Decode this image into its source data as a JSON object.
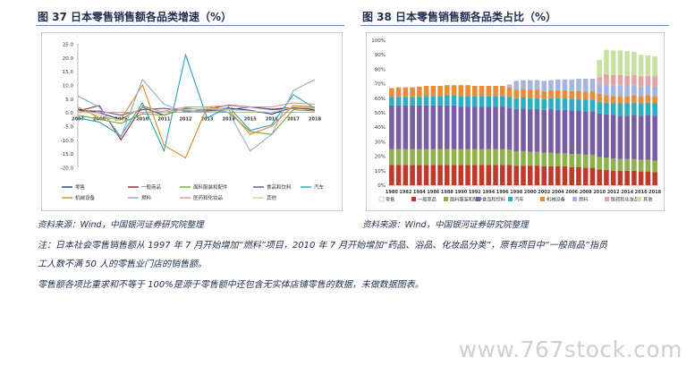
{
  "left_title": "图 37 日本零售销售额各品类增速（%）",
  "right_title": "图 38 日本零售销售额各品类占比（%）",
  "left_source": "资料来源：Wind，中国银河证券研究院整理",
  "right_source": "资料来源：Wind，中国银河证券研究院整理",
  "note1": "注：日本社会零售销售额从 1997 年 7 月开始增加“燃料”项目，2010 年 7 月开始增加“药品、浴品、化妆品分类”，原有项目中“一般商品”指员",
  "note2": "工人数不满 50 人的零售业门店的销售额。",
  "note3": "零售额各项比重求和不等于 100%是源于零售额中还包含无实体店铺零售的数据，未做数据图表。",
  "watermark": "www.767stock.com",
  "chart_data": [
    {
      "type": "line",
      "x": [
        "2007",
        "2008",
        "2009",
        "2010",
        "2011",
        "2012",
        "2013",
        "2014",
        "2015",
        "2016",
        "2017",
        "2018"
      ],
      "ylim": [
        -20,
        25
      ],
      "yticks": [
        "-20.0",
        "-15.0",
        "-10.0",
        "-5.0",
        "0.0",
        "5.0",
        "10.0",
        "15.0",
        "20.0",
        "25.0"
      ],
      "series": [
        {
          "name": "零售",
          "color": "#1f3d7a",
          "values": [
            1.2,
            -0.1,
            -2.6,
            1.8,
            -1.0,
            1.6,
            0.9,
            1.6,
            0.8,
            -0.6,
            1.9,
            1.7
          ]
        },
        {
          "name": "一般商品",
          "color": "#8b2a2a",
          "values": [
            0.5,
            2.5,
            -10.0,
            2.3,
            0.0,
            1.3,
            1.2,
            2.7,
            2.0,
            1.2,
            1.8,
            0.9
          ]
        },
        {
          "name": "面料服装和配件",
          "color": "#7aa13a",
          "values": [
            -1.0,
            -2.5,
            -4.0,
            -0.5,
            -1.0,
            1.5,
            1.0,
            0.0,
            -7.0,
            -8.0,
            1.0,
            0.5
          ]
        },
        {
          "name": "食品和饮料",
          "color": "#6a4c93",
          "values": [
            0.5,
            0.5,
            -1.0,
            1.0,
            1.5,
            0.5,
            0.5,
            1.0,
            2.0,
            1.0,
            1.5,
            1.5
          ]
        },
        {
          "name": "汽车",
          "color": "#2aa0b8",
          "values": [
            -2.0,
            -3.5,
            -8.5,
            3.5,
            -14.0,
            21.0,
            -2.0,
            2.0,
            -6.5,
            -4.5,
            6.5,
            1.5
          ]
        },
        {
          "name": "机械设备",
          "color": "#e0892a",
          "values": [
            2.0,
            -2.0,
            -2.5,
            10.0,
            -12.0,
            -16.5,
            2.0,
            1.0,
            -8.0,
            -5.0,
            2.5,
            2.0
          ]
        },
        {
          "name": "燃料",
          "color": "#8ea7d6",
          "values": [
            6.0,
            2.0,
            -9.0,
            12.0,
            3.0,
            0.0,
            1.5,
            0.0,
            -14.0,
            -8.0,
            8.0,
            12.0
          ]
        },
        {
          "name": "医药和化妆品",
          "color": "#d99594",
          "values": [
            0,
            0,
            0,
            0,
            0.5,
            2.0,
            2.0,
            2.5,
            2.0,
            2.0,
            3.5,
            3.0
          ]
        },
        {
          "name": "其他",
          "color": "#c4d79b",
          "values": [
            0.5,
            -1.0,
            -3.0,
            2.0,
            0.0,
            1.0,
            1.5,
            1.0,
            0.5,
            0.0,
            2.0,
            1.5
          ]
        }
      ]
    },
    {
      "type": "bar",
      "stacked": true,
      "categories": [
        "1980",
        "1981",
        "1982",
        "1983",
        "1984",
        "1985",
        "1986",
        "1987",
        "1988",
        "1989",
        "1990",
        "1991",
        "1992",
        "1993",
        "1994",
        "1995",
        "1996",
        "1997",
        "1998",
        "1999",
        "2000",
        "2001",
        "2002",
        "2003",
        "2004",
        "2005",
        "2006",
        "2007",
        "2008",
        "2009",
        "2010",
        "2011",
        "2012",
        "2013",
        "2014",
        "2015",
        "2016",
        "2017",
        "2018"
      ],
      "xticks": [
        "1980",
        "1982",
        "1984",
        "1986",
        "1988",
        "1990",
        "1992",
        "1994",
        "1996",
        "1998",
        "2000",
        "2002",
        "2004",
        "2006",
        "2008",
        "2010",
        "2012",
        "2014",
        "2016",
        "2018"
      ],
      "ylim": [
        0,
        100
      ],
      "yticks": [
        "0%",
        "10%",
        "20%",
        "30%",
        "40%",
        "50%",
        "60%",
        "70%",
        "80%",
        "90%",
        "100%"
      ],
      "series": [
        {
          "name": "零售",
          "color": "#ffffff",
          "values": [
            0,
            0,
            0,
            0,
            0,
            0,
            0,
            0,
            0,
            0,
            0,
            0,
            0,
            0,
            0,
            0,
            0,
            0,
            0,
            0,
            0,
            0,
            0,
            0,
            0,
            0,
            0,
            0,
            0,
            0,
            0,
            0,
            0,
            0,
            0,
            0,
            0,
            0,
            0
          ]
        },
        {
          "name": "一般商品",
          "color": "#c0392b",
          "values": [
            14,
            14,
            14,
            14,
            14,
            14,
            14,
            14,
            14,
            14,
            14,
            14,
            14,
            14,
            14,
            14,
            14,
            14,
            13.5,
            13.5,
            13.5,
            13.5,
            13,
            13,
            13,
            13,
            12.5,
            12.5,
            12,
            12,
            11,
            10.5,
            10,
            10,
            10,
            10,
            9.5,
            9.5,
            9
          ]
        },
        {
          "name": "面料服装和配件",
          "color": "#8fb04a",
          "values": [
            11,
            11,
            11,
            11,
            11,
            11,
            11,
            11,
            11,
            11,
            11,
            11,
            11,
            11,
            11,
            11,
            11,
            10.5,
            10,
            10,
            9.5,
            9.5,
            9.5,
            9.5,
            9,
            9,
            9,
            9,
            9,
            9,
            8.5,
            8.5,
            8.5,
            8,
            8,
            8,
            8,
            8,
            8
          ]
        },
        {
          "name": "食品和饮料",
          "color": "#7a5ea3",
          "values": [
            30,
            30,
            30,
            30,
            30,
            30,
            30,
            30,
            30,
            30,
            29,
            29,
            29,
            29,
            29,
            29,
            29,
            29,
            29,
            29.5,
            29.5,
            29.5,
            29.5,
            30,
            30,
            30,
            30,
            30,
            30,
            30,
            30,
            30,
            30,
            30,
            30,
            30.5,
            30.5,
            31,
            31
          ]
        },
        {
          "name": "汽车",
          "color": "#2eaec4",
          "values": [
            6,
            6,
            6,
            6,
            6,
            6.5,
            6.5,
            6.5,
            7,
            7,
            7.5,
            7.5,
            7.5,
            7.5,
            7.5,
            7.5,
            7.5,
            7.5,
            7.5,
            7.5,
            7.5,
            7.5,
            7.5,
            7.5,
            8,
            8,
            8,
            8,
            8,
            8,
            8,
            8,
            8,
            8.5,
            8.5,
            8.5,
            8.5,
            8.5,
            8.5
          ]
        },
        {
          "name": "机械设备",
          "color": "#ea8c35",
          "values": [
            6,
            6.5,
            6.5,
            6.5,
            7,
            7,
            7,
            7,
            7,
            7,
            7.5,
            7.5,
            7,
            7,
            7,
            7,
            7,
            6.5,
            6,
            6,
            6,
            6,
            5.5,
            5.5,
            5.5,
            5.5,
            5.5,
            5.5,
            5.5,
            5.5,
            5.5,
            5,
            5,
            5,
            5,
            5,
            5,
            5,
            5
          ]
        },
        {
          "name": "燃料",
          "color": "#a4b6e0",
          "values": [
            0,
            0,
            0,
            0,
            0,
            0,
            0,
            0,
            0,
            0,
            0,
            0,
            0,
            0,
            0,
            0,
            0,
            2,
            6,
            6,
            6.5,
            6.5,
            7,
            7,
            7.5,
            7.5,
            8,
            8.5,
            9,
            9,
            7.5,
            7.5,
            7.5,
            7.5,
            7,
            7,
            6.5,
            6.5,
            6.5
          ]
        },
        {
          "name": "医药和化妆品",
          "color": "#e3a4a4",
          "values": [
            0,
            0,
            0,
            0,
            0,
            0,
            0,
            0,
            0,
            0,
            0,
            0,
            0,
            0,
            0,
            0,
            0,
            0,
            0,
            0,
            0,
            0,
            0,
            0,
            0,
            0,
            0,
            0,
            0,
            0,
            4,
            7,
            7,
            7,
            7,
            7,
            7,
            7,
            7
          ]
        },
        {
          "name": "其他",
          "color": "#c8e0a0",
          "values": [
            0,
            0,
            0,
            0,
            0,
            0,
            0,
            0,
            0,
            0,
            0,
            0,
            0,
            0,
            0,
            0,
            0,
            0,
            0,
            0,
            0,
            0,
            0,
            0,
            0,
            0,
            0,
            0,
            0,
            0,
            12,
            17,
            17,
            17,
            17,
            16,
            15,
            14,
            14
          ]
        }
      ]
    }
  ]
}
